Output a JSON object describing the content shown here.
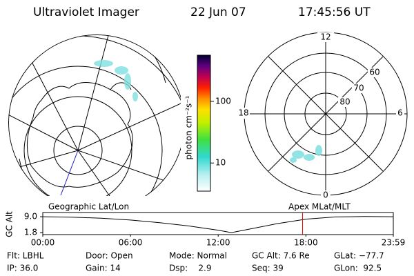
{
  "header": {
    "title": "Ultraviolet Imager",
    "date": "22 Jun 07",
    "time": "17:45:56 UT"
  },
  "colorbar": {
    "label": "photon cm⁻²s⁻¹",
    "log": true,
    "lim": [
      3.5,
      560
    ],
    "ticks": [
      10,
      100
    ]
  },
  "mlt_dial": {
    "hour_labels": [
      "12",
      "18",
      "6",
      "0"
    ],
    "lat_labels": [
      "60",
      "70",
      "80"
    ]
  },
  "orbit_strip": {
    "left_label": "Geographic Lat/Lon",
    "right_label": "Apex MLat/MLT",
    "ylabel": "GC Alt",
    "ylim": [
      0.9,
      10.9
    ],
    "yticks": [
      {
        "value": 9.0,
        "label": "9.0"
      },
      {
        "value": 1.8,
        "label": "1.8"
      }
    ],
    "xlim": [
      0,
      23.98
    ],
    "xticks": [
      {
        "value": 0,
        "label": "00:00"
      },
      {
        "value": 6,
        "label": "06:00"
      },
      {
        "value": 12,
        "label": "12:00"
      },
      {
        "value": 18,
        "label": "18:00"
      },
      {
        "value": 23.98,
        "label": "23:59"
      }
    ],
    "hours": [
      0,
      2,
      4,
      6,
      8,
      10,
      12,
      12.9,
      14,
      16,
      18,
      20,
      22,
      23.98
    ],
    "altitude": [
      9.0,
      8.8,
      8.3,
      7.5,
      6.3,
      4.8,
      2.9,
      1.8,
      3.2,
      5.8,
      7.9,
      8.9,
      9.1,
      9.0
    ],
    "marker_hour": 17.77,
    "marker_color": "#e00000"
  },
  "footer": [
    [
      "Flt: LBHL",
      "Door: Open",
      "Mode: Normal",
      "GC Alt: 7.6 Re",
      "GLat: −77.7"
    ],
    [
      "IP: 36.0",
      "Gain: 14",
      "Dsp:    2.9",
      "Seq: 39",
      "GLon:  92.5"
    ]
  ]
}
